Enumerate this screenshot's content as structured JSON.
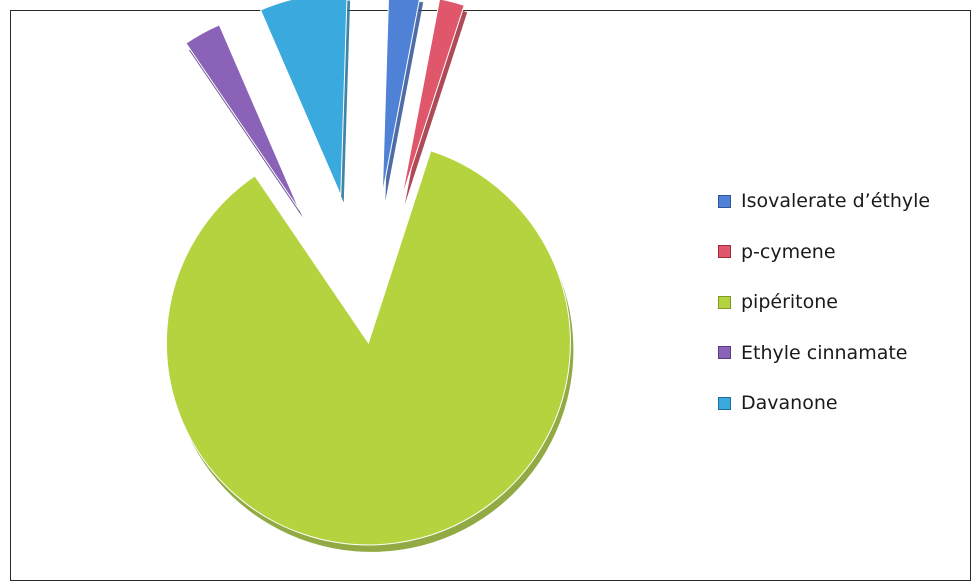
{
  "chart_data": {
    "type": "pie",
    "title": "",
    "legend_position": "right",
    "categories": [
      "Isovalerate d’éthyle",
      "p-cymene",
      "pipéritone",
      "Ethyle cinnamate",
      "Davanone"
    ],
    "values": [
      2.5,
      2.0,
      85.5,
      3.0,
      7.0
    ],
    "colors": [
      "#4f81d6",
      "#e0566a",
      "#b5d33e",
      "#8a62b8",
      "#3aa9de"
    ],
    "shadow_colors": [
      "#2f5498",
      "#a02c3a",
      "#7f9b22",
      "#5a3a80",
      "#1f6f98"
    ],
    "exploded": true
  }
}
